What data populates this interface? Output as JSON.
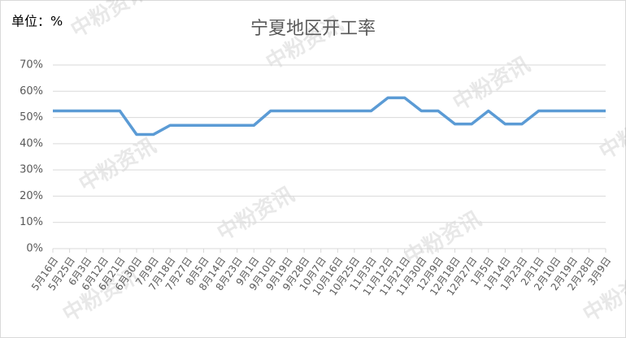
{
  "chart_data": {
    "type": "line",
    "title": "宁夏地区开工率",
    "unit_label": "单位：%",
    "watermark": "中粉资讯",
    "categories": [
      "5月16日",
      "5月25日",
      "6月3日",
      "6月12日",
      "6月21日",
      "6月30日",
      "7月9日",
      "7月18日",
      "7月27日",
      "8月5日",
      "8月14日",
      "8月23日",
      "9月1日",
      "9月10日",
      "9月19日",
      "9月28日",
      "10月7日",
      "10月16日",
      "10月25日",
      "11月3日",
      "11月12日",
      "11月21日",
      "11月30日",
      "12月9日",
      "12月18日",
      "12月27日",
      "1月5日",
      "1月14日",
      "1月23日",
      "2月1日",
      "2月10日",
      "2月19日",
      "2月28日",
      "3月9日"
    ],
    "series": [
      {
        "name": "宁夏地区开工率",
        "color": "#5b9bd5",
        "values": [
          52.5,
          52.5,
          52.5,
          52.5,
          52.5,
          43.5,
          43.5,
          47,
          47,
          47,
          47,
          47,
          47,
          52.5,
          52.5,
          52.5,
          52.5,
          52.5,
          52.5,
          52.5,
          57.5,
          57.5,
          52.5,
          52.5,
          47.5,
          47.5,
          52.5,
          47.5,
          47.5,
          52.5,
          52.5,
          52.5,
          52.5,
          52.5
        ]
      }
    ],
    "ylim": [
      0,
      70
    ],
    "yticks": [
      {
        "value": 0,
        "label": "0%"
      },
      {
        "value": 10,
        "label": "10%"
      },
      {
        "value": 20,
        "label": "20%"
      },
      {
        "value": 30,
        "label": "30%"
      },
      {
        "value": 40,
        "label": "40%"
      },
      {
        "value": 50,
        "label": "50%"
      },
      {
        "value": 60,
        "label": "60%"
      },
      {
        "value": 70,
        "label": "70%"
      }
    ],
    "grid": true
  }
}
